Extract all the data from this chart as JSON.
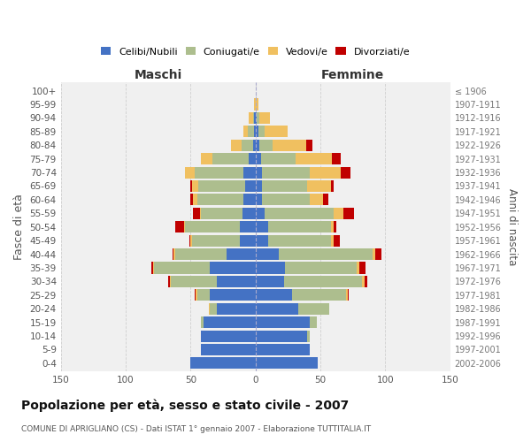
{
  "age_groups": [
    "0-4",
    "5-9",
    "10-14",
    "15-19",
    "20-24",
    "25-29",
    "30-34",
    "35-39",
    "40-44",
    "45-49",
    "50-54",
    "55-59",
    "60-64",
    "65-69",
    "70-74",
    "75-79",
    "80-84",
    "85-89",
    "90-94",
    "95-99",
    "100+"
  ],
  "birth_years": [
    "2002-2006",
    "1997-2001",
    "1992-1996",
    "1987-1991",
    "1982-1986",
    "1977-1981",
    "1972-1976",
    "1967-1971",
    "1962-1966",
    "1957-1961",
    "1952-1956",
    "1947-1951",
    "1942-1946",
    "1937-1941",
    "1932-1936",
    "1927-1931",
    "1922-1926",
    "1917-1921",
    "1912-1916",
    "1907-1911",
    "≤ 1906"
  ],
  "males_celibi": [
    50,
    42,
    42,
    40,
    30,
    35,
    30,
    35,
    22,
    12,
    12,
    10,
    9,
    8,
    9,
    5,
    2,
    1,
    1,
    0,
    0
  ],
  "males_coniugati": [
    0,
    0,
    0,
    2,
    5,
    10,
    35,
    43,
    40,
    37,
    42,
    32,
    36,
    36,
    38,
    28,
    9,
    5,
    1,
    0,
    0
  ],
  "males_vedovi": [
    0,
    0,
    0,
    0,
    1,
    1,
    1,
    1,
    1,
    1,
    1,
    1,
    3,
    5,
    7,
    9,
    8,
    3,
    3,
    1,
    0
  ],
  "males_divorziati": [
    0,
    0,
    0,
    0,
    0,
    1,
    1,
    1,
    1,
    1,
    7,
    5,
    2,
    1,
    0,
    0,
    0,
    0,
    0,
    0,
    0
  ],
  "females_nubili": [
    48,
    42,
    40,
    42,
    33,
    28,
    22,
    23,
    18,
    10,
    10,
    7,
    5,
    5,
    5,
    4,
    3,
    2,
    1,
    0,
    0
  ],
  "females_coniugate": [
    0,
    0,
    2,
    5,
    24,
    42,
    60,
    55,
    72,
    48,
    48,
    53,
    37,
    35,
    37,
    27,
    10,
    5,
    2,
    0,
    0
  ],
  "females_vedove": [
    0,
    0,
    0,
    0,
    0,
    1,
    2,
    2,
    2,
    2,
    2,
    8,
    10,
    18,
    24,
    28,
    26,
    18,
    8,
    2,
    0
  ],
  "females_divorziate": [
    0,
    0,
    0,
    0,
    0,
    1,
    2,
    5,
    5,
    5,
    2,
    8,
    4,
    2,
    7,
    7,
    5,
    0,
    0,
    0,
    0
  ],
  "colors": {
    "celibi_nubili": "#4472C4",
    "coniugati_e": "#ADBE8E",
    "vedovi_e": "#F0C060",
    "divorziati_e": "#C00000"
  },
  "title": "Popolazione per età, sesso e stato civile - 2007",
  "subtitle": "COMUNE DI APRIGLIANO (CS) - Dati ISTAT 1° gennaio 2007 - Elaborazione TUTTITALIA.IT",
  "label_maschi": "Maschi",
  "label_femmine": "Femmine",
  "ylabel_left": "Fasce di età",
  "ylabel_right": "Anni di nascita",
  "xlim": 150,
  "legend_labels": [
    "Celibi/Nubili",
    "Coniugati/e",
    "Vedovi/e",
    "Divorziati/e"
  ],
  "bg_color": "#ffffff",
  "plot_bg": "#f0f0f0",
  "bar_height": 0.85
}
